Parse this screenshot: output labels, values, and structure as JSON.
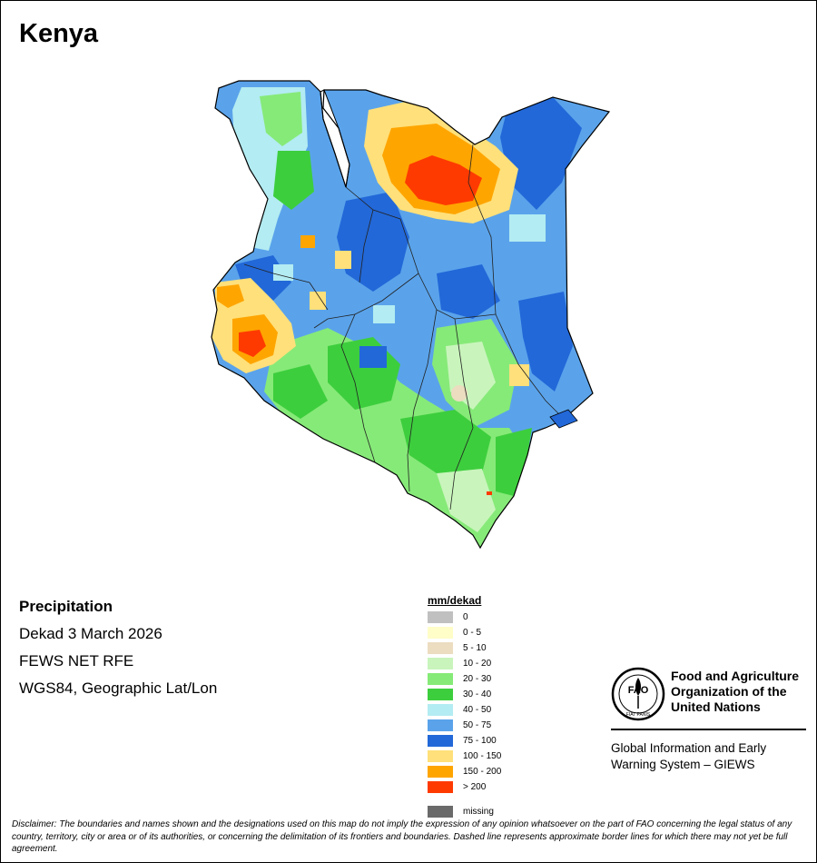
{
  "title": "Kenya",
  "info": {
    "variable": "Precipitation",
    "period": "Dekad 3 March 2026",
    "source": "FEWS NET RFE",
    "projection": "WGS84, Geographic Lat/Lon"
  },
  "legend": {
    "title": "mm/dekad",
    "items": [
      {
        "label": "0",
        "color": "#c0c0c0"
      },
      {
        "label": "0 - 5",
        "color": "#fffdc8"
      },
      {
        "label": "5 - 10",
        "color": "#ecdcc0"
      },
      {
        "label": "10 - 20",
        "color": "#c9f5bc"
      },
      {
        "label": "20 - 30",
        "color": "#86ea78"
      },
      {
        "label": "30 - 40",
        "color": "#3dce3d"
      },
      {
        "label": "40 - 50",
        "color": "#b3ecf2"
      },
      {
        "label": "50 - 75",
        "color": "#5aa3eb"
      },
      {
        "label": "75 - 100",
        "color": "#2268d8"
      },
      {
        "label": "100 - 150",
        "color": "#ffe07a"
      },
      {
        "label": "150 - 200",
        "color": "#ffa500"
      },
      {
        "label": "> 200",
        "color": "#ff3a00"
      },
      {
        "label": "missing",
        "color": "#6a6a6a"
      }
    ]
  },
  "organization": {
    "name_line1": "Food and Agriculture",
    "name_line2": "Organization of the",
    "name_line3": "United Nations",
    "logo_text": "FAO",
    "logo_motto": "FIAT PANIS",
    "system_line1": "Global Information and Early",
    "system_line2": "Warning System – GIEWS"
  },
  "disclaimer": "Disclaimer: The boundaries and names shown and the designations used on this map do not imply the expression of any opinion whatsoever on the part of FAO concerning the legal status of any country, territory, city or area or of its authorities, or concerning the delimitation of its frontiers and boundaries. Dashed line represents approximate border lines for which there may not yet be full agreement."
}
